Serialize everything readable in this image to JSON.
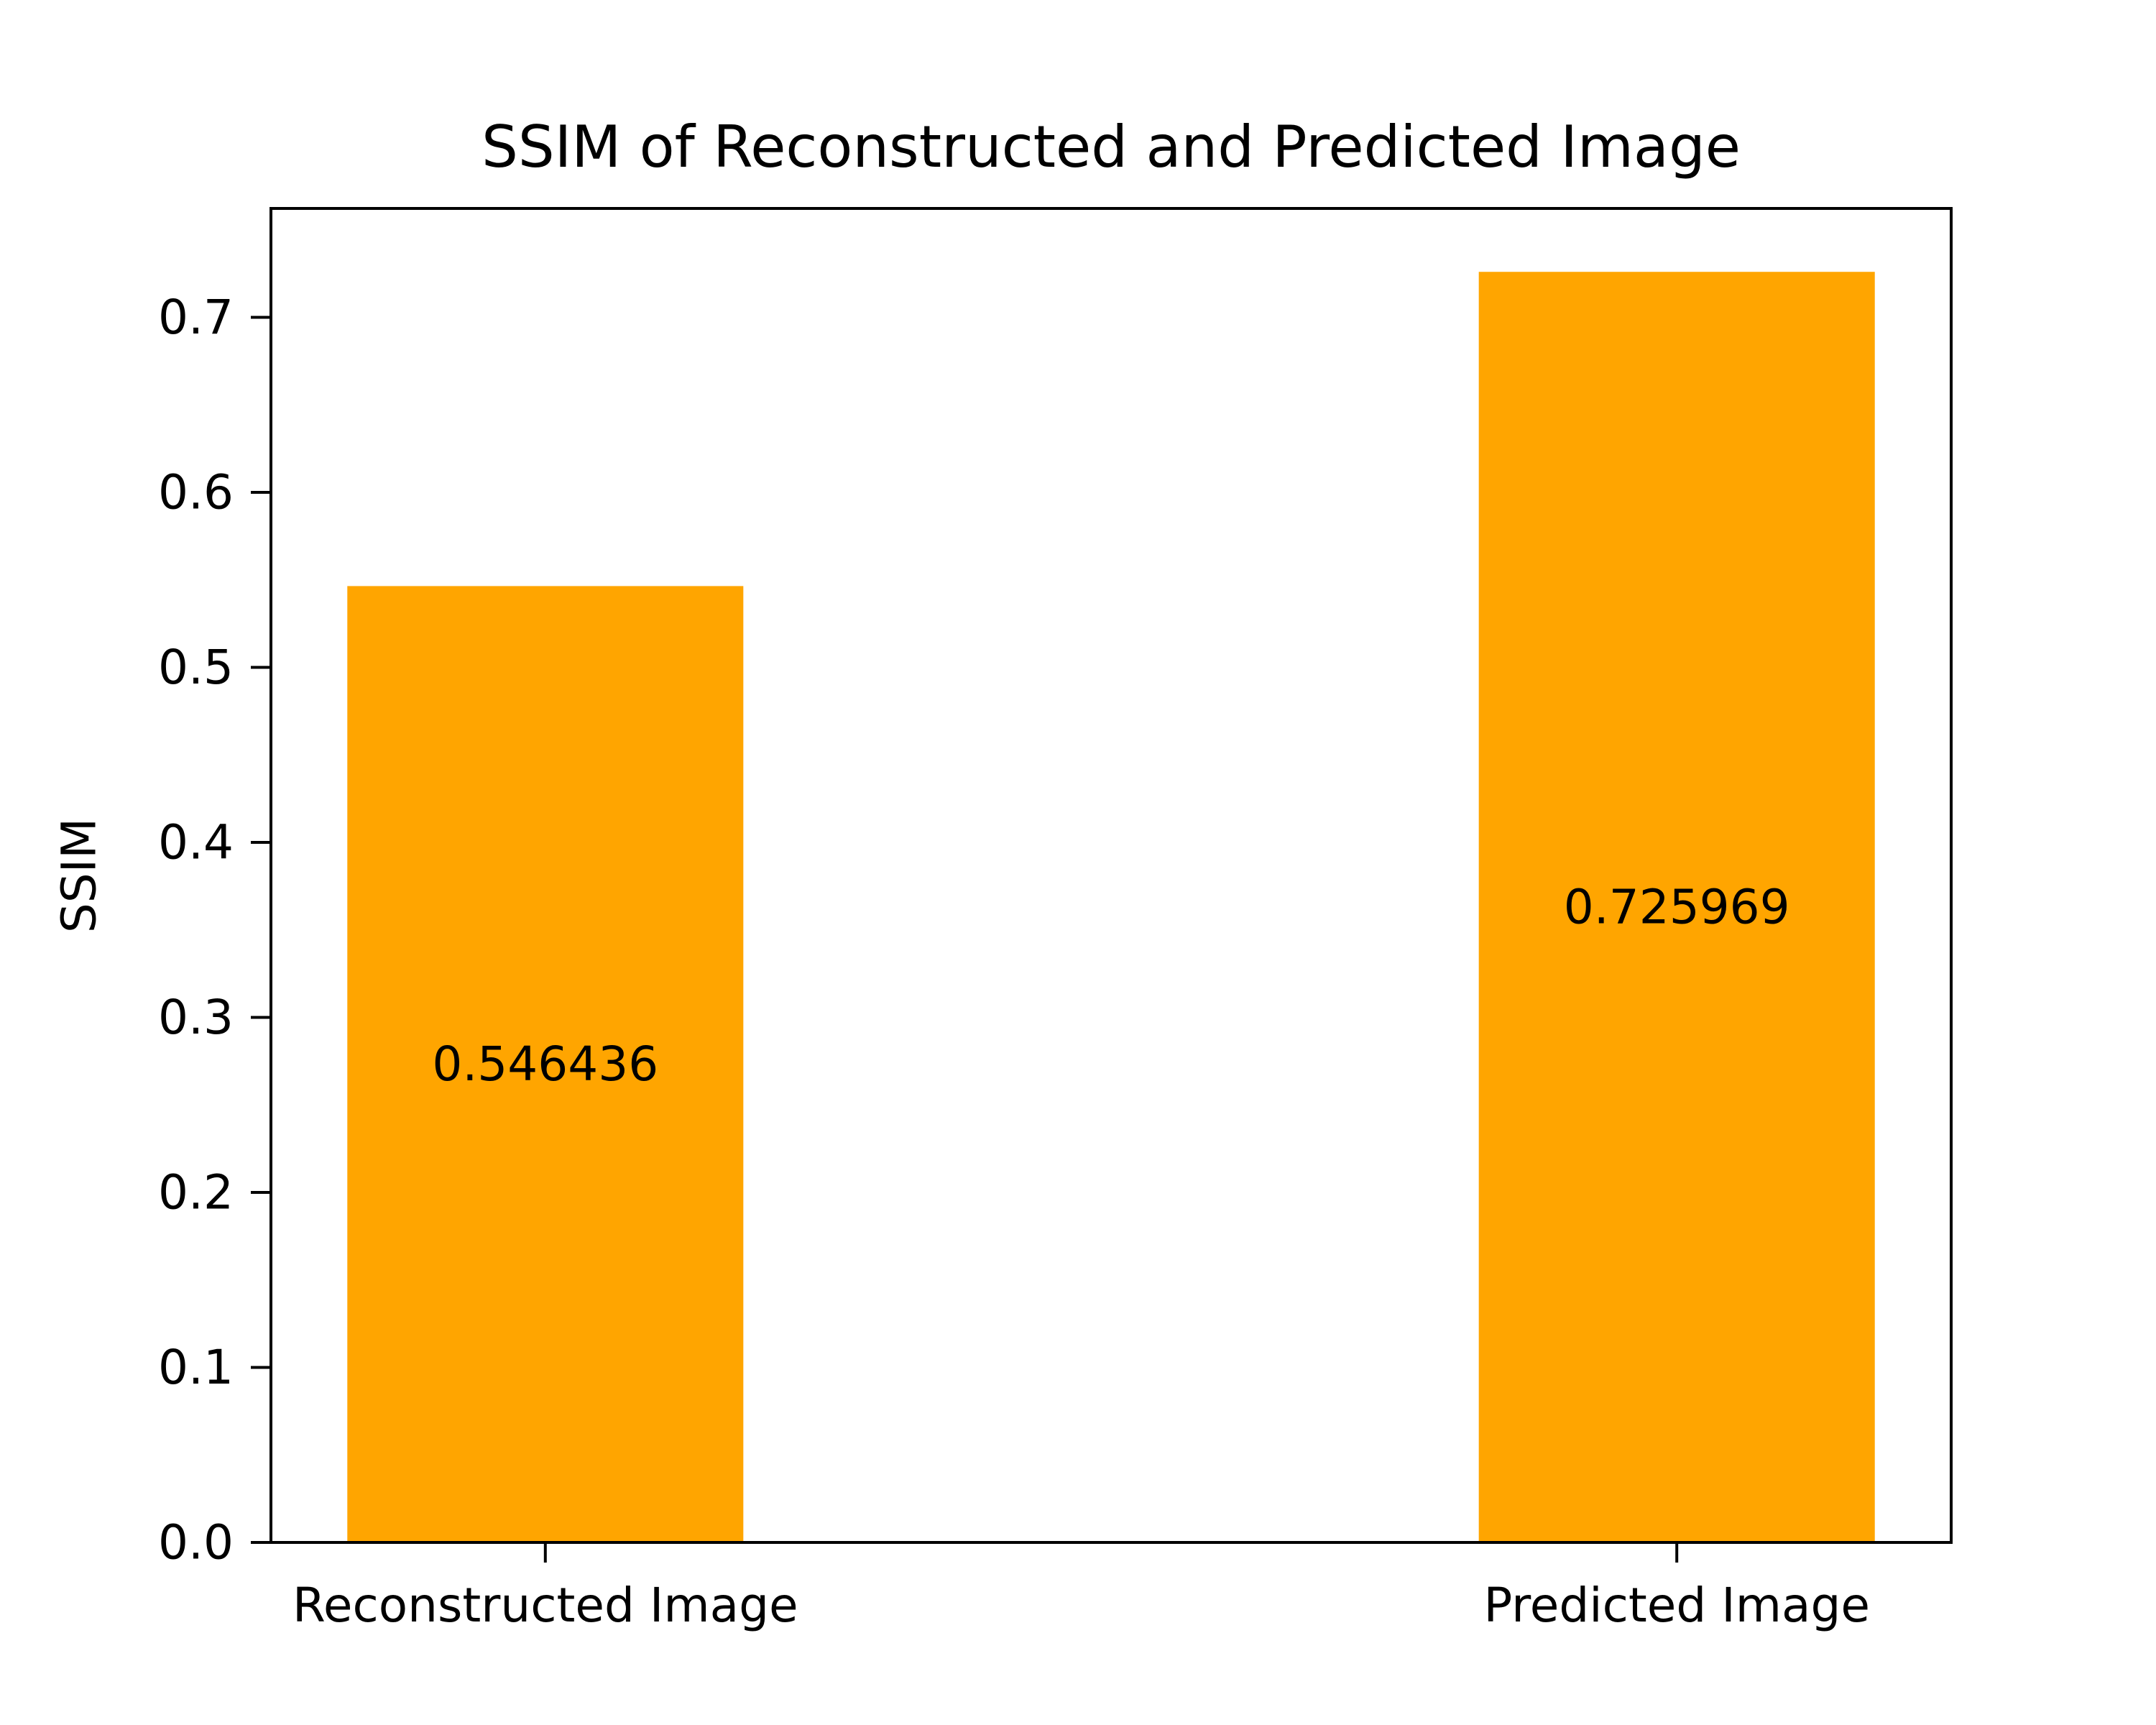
{
  "chart_data": {
    "type": "bar",
    "title": "SSIM of Reconstructed and Predicted Image",
    "xlabel": "",
    "ylabel": "SSIM",
    "categories": [
      "Reconstructed Image",
      "Predicted Image"
    ],
    "values": [
      0.546436,
      0.725969
    ],
    "data_labels": [
      "0.546436",
      "0.725969"
    ],
    "ylim": [
      0,
      0.7622
    ],
    "yticks": [
      0.0,
      0.1,
      0.2,
      0.3,
      0.4,
      0.5,
      0.6,
      0.7
    ],
    "ytick_labels": [
      "0.0",
      "0.1",
      "0.2",
      "0.3",
      "0.4",
      "0.5",
      "0.6",
      "0.7"
    ],
    "bar_color": "#FFA500",
    "grid": false,
    "legend": "none"
  }
}
